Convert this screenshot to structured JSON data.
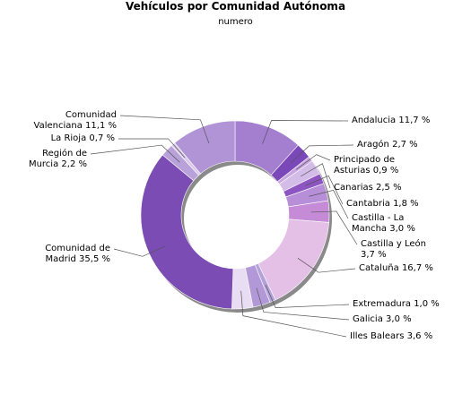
{
  "chart_data": {
    "type": "donut",
    "title": "Vehículos por Comunidad Autónoma",
    "subtitle": "numero",
    "categories": [
      "Andalucia",
      "Aragón",
      "Principado de Asturias",
      "Canarias",
      "Cantabria",
      "Castilla - La Mancha",
      "Castilla y León",
      "Cataluña",
      "Extremadura",
      "Galicia",
      "Illes Balears",
      "Comunidad de Madrid",
      "Región de Murcia",
      "La Rioja",
      "Comunidad Valenciana"
    ],
    "values": [
      11.7,
      2.7,
      0.9,
      2.5,
      1.8,
      3.0,
      3.7,
      16.7,
      1.0,
      3.0,
      3.6,
      35.5,
      2.2,
      0.7,
      11.1
    ],
    "value_labels": [
      "11,7 %",
      "2,7 %",
      "0,9 %",
      "2,5 %",
      "1,8 %",
      "3,0 %",
      "3,7 %",
      "16,7 %",
      "1,0 %",
      "3,0 %",
      "3,6 %",
      "35,5 %",
      "2,2 %",
      "0,7 %",
      "11,1 %"
    ],
    "colors": [
      "#a47ecf",
      "#7a48b8",
      "#c8a6e0",
      "#d4bce8",
      "#8c55c2",
      "#b78fd8",
      "#c58bd6",
      "#e4c0e6",
      "#b3a1da",
      "#b398d8",
      "#e8ddf2",
      "#7a4cb4",
      "#b9a1d9",
      "#d9c9ea",
      "#b094d6"
    ]
  }
}
